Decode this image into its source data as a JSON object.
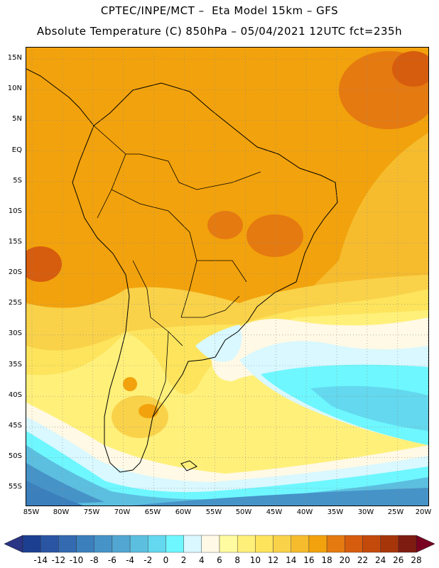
{
  "header": {
    "line1": "CPTEC/INPE/MCT –  Eta Model 15km – GFS",
    "line2": "Absolute Temperature (C) 850hPa – 05/04/2021 12UTC fct=235h"
  },
  "map": {
    "lat_ticks": [
      "15N",
      "10N",
      "5N",
      "EQ",
      "5S",
      "10S",
      "15S",
      "20S",
      "25S",
      "30S",
      "35S",
      "40S",
      "45S",
      "50S",
      "55S"
    ],
    "lon_ticks": [
      "85W",
      "80W",
      "75W",
      "70W",
      "65W",
      "60W",
      "55W",
      "50W",
      "45W",
      "40W",
      "35W",
      "30W",
      "25W",
      "20W"
    ],
    "gridlines": "dotted"
  },
  "colorbar": {
    "labels": [
      "-14",
      "-12",
      "-10",
      "-8",
      "-6",
      "-4",
      "-2",
      "0",
      "2",
      "4",
      "6",
      "8",
      "10",
      "12",
      "14",
      "16",
      "18",
      "20",
      "22",
      "24",
      "26",
      "28"
    ],
    "colors": [
      "#1d3f8f",
      "#2a55a3",
      "#336ab0",
      "#3b7fbd",
      "#4693c8",
      "#52a6d2",
      "#5cbfe0",
      "#63d8ee",
      "#6ef7ff",
      "#d9f8ff",
      "#fff9e5",
      "#fffba0",
      "#fff07a",
      "#fde45c",
      "#f9d24a",
      "#f6bc2e",
      "#f2a20c",
      "#e57a10",
      "#d65c0e",
      "#c44a0c",
      "#a7350a",
      "#7e1c12"
    ],
    "low_arrow_color": "#2a3585",
    "high_arrow_color": "#7a0022"
  }
}
